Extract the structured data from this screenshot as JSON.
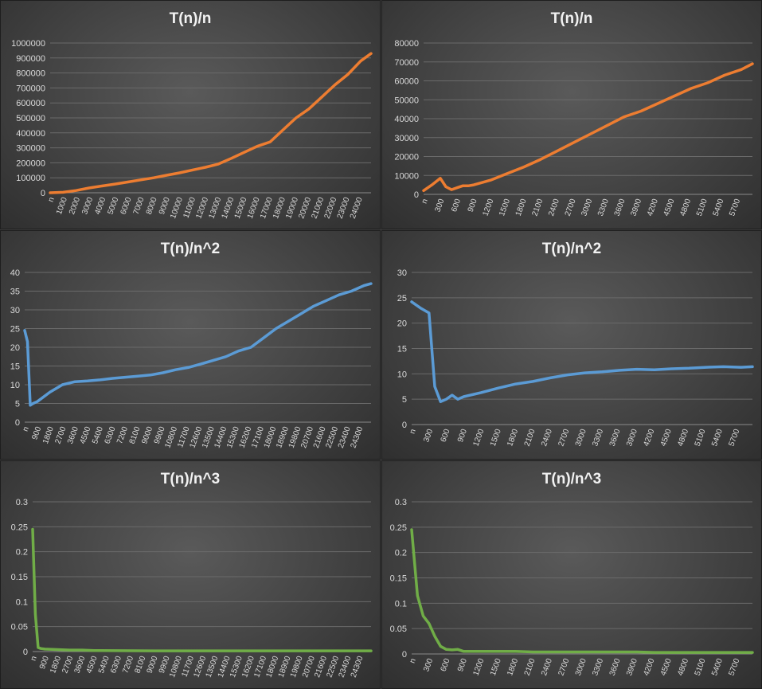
{
  "chart_data": [
    {
      "type": "line",
      "title": "T(n)/n",
      "xlabel": "",
      "ylabel": "",
      "color": "#ed7d31",
      "ylim": [
        0,
        1000000
      ],
      "yticks": [
        "0",
        "100000",
        "200000",
        "300000",
        "400000",
        "500000",
        "600000",
        "700000",
        "800000",
        "900000",
        "1000000"
      ],
      "xticks": [
        "n",
        "1000",
        "2000",
        "3000",
        "4000",
        "5000",
        "6000",
        "7000",
        "8000",
        "9000",
        "10000",
        "11000",
        "12000",
        "13000",
        "14000",
        "15000",
        "16000",
        "17000",
        "18000",
        "19000",
        "20000",
        "21000",
        "22000",
        "23000",
        "24000"
      ],
      "x": [
        0,
        1000,
        2000,
        3000,
        4000,
        5000,
        6000,
        7000,
        8000,
        9000,
        10000,
        11000,
        12000,
        13000,
        14000,
        15000,
        16000,
        17000,
        18000,
        19000,
        20000,
        21000,
        22000,
        23000,
        24000,
        24800
      ],
      "y": [
        0,
        3000,
        15000,
        32000,
        45000,
        58000,
        72000,
        86000,
        100000,
        117000,
        133000,
        152000,
        170000,
        192000,
        230000,
        270000,
        310000,
        340000,
        420000,
        500000,
        560000,
        640000,
        720000,
        790000,
        880000,
        930000
      ],
      "grid": true
    },
    {
      "type": "line",
      "title": "T(n)/n",
      "xlabel": "",
      "ylabel": "",
      "color": "#ed7d31",
      "ylim": [
        0,
        80000
      ],
      "yticks": [
        "0",
        "10000",
        "20000",
        "30000",
        "40000",
        "50000",
        "60000",
        "70000",
        "80000"
      ],
      "xticks": [
        "n",
        "300",
        "600",
        "900",
        "1200",
        "1500",
        "1800",
        "2100",
        "2400",
        "2700",
        "3000",
        "3300",
        "3600",
        "3900",
        "4200",
        "4500",
        "4800",
        "5100",
        "5400",
        "5700"
      ],
      "x": [
        0,
        150,
        300,
        400,
        500,
        600,
        700,
        800,
        900,
        1200,
        1500,
        1800,
        2100,
        2400,
        2700,
        3000,
        3300,
        3600,
        3900,
        4200,
        4500,
        4800,
        5100,
        5400,
        5700,
        5900
      ],
      "y": [
        2000,
        5000,
        8500,
        4000,
        2500,
        3500,
        4500,
        4500,
        5000,
        7500,
        11000,
        14500,
        18500,
        23000,
        27500,
        32000,
        36500,
        41000,
        44000,
        48000,
        52000,
        56000,
        59000,
        63000,
        66000,
        69000
      ],
      "grid": true
    },
    {
      "type": "line",
      "title": "T(n)/n^2",
      "xlabel": "",
      "ylabel": "",
      "color": "#5b9bd5",
      "ylim": [
        0,
        40
      ],
      "yticks": [
        "0",
        "5",
        "10",
        "15",
        "20",
        "25",
        "30",
        "35",
        "40"
      ],
      "xticks": [
        "n",
        "900",
        "1800",
        "2700",
        "3600",
        "4500",
        "5400",
        "6300",
        "7200",
        "8100",
        "9000",
        "9900",
        "10800",
        "11700",
        "12600",
        "13500",
        "14400",
        "15300",
        "16200",
        "17100",
        "18000",
        "18900",
        "19800",
        "20700",
        "21600",
        "22500",
        "23400",
        "24300"
      ],
      "x": [
        0,
        200,
        400,
        600,
        900,
        1800,
        2700,
        3600,
        4500,
        5400,
        6300,
        7200,
        8100,
        9000,
        9900,
        10800,
        11700,
        12600,
        13500,
        14400,
        15300,
        16200,
        17100,
        18000,
        18900,
        19800,
        20700,
        21600,
        22500,
        23400,
        24300,
        24800
      ],
      "y": [
        24.5,
        21.5,
        4.5,
        5.0,
        5.5,
        8.0,
        10.0,
        10.8,
        11.0,
        11.3,
        11.7,
        12.0,
        12.3,
        12.6,
        13.2,
        14.0,
        14.6,
        15.5,
        16.5,
        17.5,
        19.0,
        20.0,
        22.5,
        25.0,
        27.0,
        29.0,
        31.0,
        32.5,
        34.0,
        35.0,
        36.5,
        37.0
      ],
      "grid": true
    },
    {
      "type": "line",
      "title": "T(n)/n^2",
      "xlabel": "",
      "ylabel": "",
      "color": "#5b9bd5",
      "ylim": [
        0,
        30
      ],
      "yticks": [
        "0",
        "5",
        "10",
        "15",
        "20",
        "25",
        "30"
      ],
      "xticks": [
        "n",
        "300",
        "600",
        "900",
        "1200",
        "1500",
        "1800",
        "2100",
        "2400",
        "2700",
        "3000",
        "3300",
        "3600",
        "3900",
        "4200",
        "4500",
        "4800",
        "5100",
        "5400",
        "5700"
      ],
      "x": [
        0,
        150,
        300,
        400,
        500,
        600,
        700,
        800,
        900,
        1200,
        1500,
        1800,
        2100,
        2400,
        2700,
        3000,
        3300,
        3600,
        3900,
        4200,
        4500,
        4800,
        5100,
        5400,
        5700,
        5900
      ],
      "y": [
        24.2,
        23.0,
        22.0,
        7.5,
        4.5,
        5.0,
        5.8,
        5.0,
        5.5,
        6.3,
        7.2,
        8.0,
        8.5,
        9.2,
        9.8,
        10.2,
        10.4,
        10.7,
        10.9,
        10.8,
        11.0,
        11.1,
        11.3,
        11.4,
        11.3,
        11.4
      ],
      "grid": true
    },
    {
      "type": "line",
      "title": "T(n)/n^3",
      "xlabel": "",
      "ylabel": "",
      "color": "#70ad47",
      "ylim": [
        0,
        0.3
      ],
      "yticks": [
        "0",
        "0.05",
        "0.1",
        "0.15",
        "0.2",
        "0.25",
        "0.3"
      ],
      "xticks": [
        "n",
        "900",
        "1800",
        "2700",
        "3600",
        "4500",
        "5400",
        "6300",
        "7200",
        "8100",
        "9000",
        "9900",
        "10800",
        "11700",
        "12600",
        "13500",
        "14400",
        "15300",
        "16200",
        "17100",
        "18000",
        "18900",
        "19800",
        "20700",
        "21600",
        "22500",
        "23400",
        "24300"
      ],
      "x": [
        0,
        200,
        400,
        600,
        900,
        1800,
        2700,
        3600,
        4500,
        9000,
        18000,
        24800
      ],
      "y": [
        0.245,
        0.075,
        0.008,
        0.006,
        0.005,
        0.004,
        0.003,
        0.003,
        0.002,
        0.0015,
        0.0015,
        0.0015
      ],
      "grid": true
    },
    {
      "type": "line",
      "title": "T(n)/n^3",
      "xlabel": "",
      "ylabel": "",
      "color": "#70ad47",
      "ylim": [
        0,
        0.3
      ],
      "yticks": [
        "0",
        "0.05",
        "0.1",
        "0.15",
        "0.2",
        "0.25",
        "0.3"
      ],
      "xticks": [
        "n",
        "300",
        "600",
        "900",
        "1200",
        "1500",
        "1800",
        "2100",
        "2400",
        "2700",
        "3000",
        "3300",
        "3600",
        "3900",
        "4200",
        "4500",
        "4800",
        "5100",
        "5400",
        "5700"
      ],
      "x": [
        0,
        100,
        200,
        300,
        400,
        500,
        600,
        700,
        800,
        900,
        1200,
        1500,
        1800,
        2100,
        2400,
        3000,
        3900,
        4200,
        5100,
        5900
      ],
      "y": [
        0.245,
        0.115,
        0.075,
        0.06,
        0.035,
        0.015,
        0.009,
        0.008,
        0.009,
        0.005,
        0.005,
        0.005,
        0.005,
        0.004,
        0.004,
        0.004,
        0.004,
        0.003,
        0.003,
        0.003
      ],
      "grid": true
    }
  ]
}
